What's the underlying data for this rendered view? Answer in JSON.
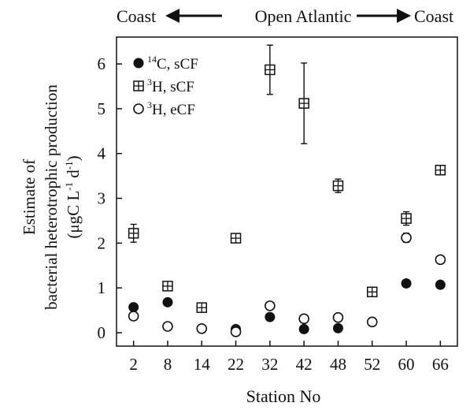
{
  "chart_data": {
    "type": "scatter",
    "title": "",
    "banner": {
      "left": "Coast",
      "center": "Open Atlantic",
      "right": "Coast"
    },
    "xlabel": "Station No",
    "ylabel_line1": "Estimate of",
    "ylabel_line2": "bacterial heterotrophic production",
    "ylabel_line3_prefix": "(μgC L",
    "ylabel_line3_sup1": "-1",
    "ylabel_line3_mid": " d",
    "ylabel_line3_sup2": "-1",
    "ylabel_line3_suffix": ")",
    "categories": [
      "2",
      "8",
      "14",
      "22",
      "32",
      "42",
      "48",
      "52",
      "60",
      "66"
    ],
    "ylim": [
      -0.3,
      6.6
    ],
    "yticks": [
      0,
      1,
      2,
      3,
      4,
      5,
      6
    ],
    "grid": false,
    "legend_position": "top-left",
    "series": [
      {
        "name_sup": "14",
        "name_rest": "C, sCF",
        "marker": "filled-circle",
        "values": [
          0.57,
          0.68,
          null,
          0.08,
          0.35,
          0.08,
          0.1,
          null,
          1.1,
          1.07
        ],
        "errors": [
          0,
          0,
          0,
          0,
          0,
          0,
          0,
          0,
          0,
          0
        ]
      },
      {
        "name_sup": "3",
        "name_rest": "H, sCF",
        "marker": "boxed-plus",
        "values": [
          2.22,
          1.04,
          0.56,
          2.11,
          5.87,
          5.12,
          3.28,
          0.91,
          2.55,
          3.63
        ],
        "errors": [
          0.2,
          0,
          0,
          0,
          0.55,
          0.9,
          0.15,
          0,
          0.15,
          0
        ]
      },
      {
        "name_sup": "3",
        "name_rest": "H, eCF",
        "marker": "open-circle",
        "values": [
          0.37,
          0.14,
          0.09,
          0.02,
          0.6,
          0.31,
          0.34,
          0.24,
          2.12,
          1.63
        ],
        "errors": [
          0,
          0,
          0,
          0,
          0,
          0,
          0,
          0,
          0.1,
          0
        ]
      }
    ]
  }
}
